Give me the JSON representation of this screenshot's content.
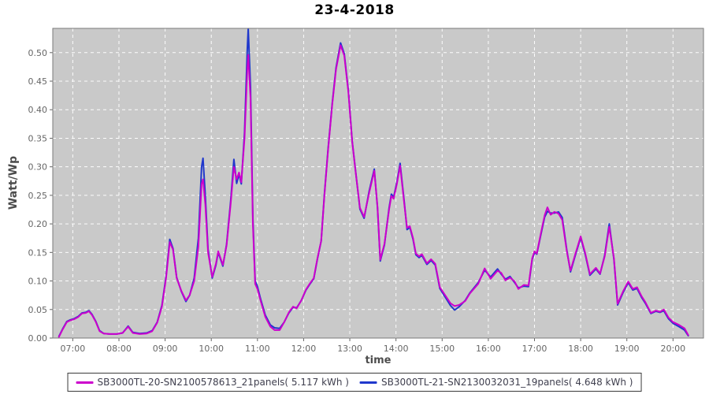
{
  "title": "23-4-2018",
  "colors": {
    "plot_background": "#c9c9c9",
    "plot_border": "#7a7a7a",
    "gridline": "#ffffff",
    "tick_label": "#666666",
    "axis_label": "#4d4d4d",
    "series_magenta": "#cc00cc",
    "series_blue": "#2038cc",
    "legend_border": "#3a3a3a",
    "legend_text": "#3f3f4e"
  },
  "chart_data": {
    "type": "line",
    "title": "23-4-2018",
    "xlabel": "time",
    "ylabel": "Watt/Wp",
    "xlim": [
      6.567,
      20.66
    ],
    "ylim": [
      0,
      0.5425
    ],
    "grid": "white dashed, hourly vertical + 0.05 horizontal",
    "legend_position": "bottom",
    "x_ticks": [
      {
        "value": 7,
        "label": "07:00"
      },
      {
        "value": 8,
        "label": "08:00"
      },
      {
        "value": 9,
        "label": "09:00"
      },
      {
        "value": 10,
        "label": "10:00"
      },
      {
        "value": 11,
        "label": "11:00"
      },
      {
        "value": 12,
        "label": "12:00"
      },
      {
        "value": 13,
        "label": "13:00"
      },
      {
        "value": 14,
        "label": "14:00"
      },
      {
        "value": 15,
        "label": "15:00"
      },
      {
        "value": 16,
        "label": "16:00"
      },
      {
        "value": 17,
        "label": "17:00"
      },
      {
        "value": 18,
        "label": "18:00"
      },
      {
        "value": 19,
        "label": "19:00"
      },
      {
        "value": 20,
        "label": "20:00"
      }
    ],
    "y_ticks": [
      {
        "value": 0.0,
        "label": "0.00"
      },
      {
        "value": 0.05,
        "label": "0.05"
      },
      {
        "value": 0.1,
        "label": "0.10"
      },
      {
        "value": 0.15,
        "label": "0.15"
      },
      {
        "value": 0.2,
        "label": "0.20"
      },
      {
        "value": 0.25,
        "label": "0.25"
      },
      {
        "value": 0.3,
        "label": "0.30"
      },
      {
        "value": 0.35,
        "label": "0.35"
      },
      {
        "value": 0.4,
        "label": "0.40"
      },
      {
        "value": 0.45,
        "label": "0.45"
      },
      {
        "value": 0.5,
        "label": "0.50"
      }
    ],
    "x": [
      6.7,
      6.78,
      6.87,
      6.95,
      7.03,
      7.12,
      7.2,
      7.28,
      7.35,
      7.42,
      7.5,
      7.58,
      7.67,
      7.8,
      7.95,
      8.08,
      8.2,
      8.3,
      8.45,
      8.6,
      8.72,
      8.83,
      8.93,
      9.02,
      9.1,
      9.17,
      9.25,
      9.35,
      9.45,
      9.53,
      9.63,
      9.72,
      9.79,
      9.82,
      9.87,
      9.93,
      10.02,
      10.1,
      10.15,
      10.25,
      10.33,
      10.42,
      10.49,
      10.55,
      10.6,
      10.65,
      10.72,
      10.78,
      10.8,
      10.85,
      10.9,
      10.95,
      11.0,
      11.07,
      11.17,
      11.28,
      11.37,
      11.48,
      11.58,
      11.68,
      11.77,
      11.85,
      11.95,
      12.05,
      12.13,
      12.22,
      12.3,
      12.38,
      12.45,
      12.53,
      12.62,
      12.7,
      12.8,
      12.88,
      12.97,
      13.05,
      13.12,
      13.22,
      13.31,
      13.42,
      13.53,
      13.6,
      13.66,
      13.75,
      13.85,
      13.9,
      13.95,
      14.02,
      14.09,
      14.18,
      14.24,
      14.3,
      14.37,
      14.43,
      14.5,
      14.56,
      14.67,
      14.76,
      14.85,
      14.95,
      15.08,
      15.18,
      15.27,
      15.37,
      15.5,
      15.6,
      15.78,
      15.92,
      16.05,
      16.2,
      16.28,
      16.37,
      16.47,
      16.57,
      16.65,
      16.77,
      16.87,
      16.95,
      17.0,
      17.05,
      17.13,
      17.22,
      17.28,
      17.35,
      17.43,
      17.52,
      17.6,
      17.7,
      17.78,
      17.88,
      18.0,
      18.1,
      18.2,
      18.33,
      18.42,
      18.52,
      18.62,
      18.72,
      18.8,
      18.92,
      19.03,
      19.13,
      19.22,
      19.32,
      19.4,
      19.52,
      19.63,
      19.72,
      19.8,
      19.9,
      20.0,
      20.13,
      20.25,
      20.33
    ],
    "series": [
      {
        "name": "SB3000TL-20-SN2100578613_21panels( 5.117 kWh )",
        "color": "#cc00cc",
        "energy_kwh": "5.117",
        "values": [
          0.002,
          0.015,
          0.028,
          0.031,
          0.033,
          0.037,
          0.043,
          0.044,
          0.047,
          0.04,
          0.028,
          0.012,
          0.008,
          0.007,
          0.007,
          0.009,
          0.02,
          0.009,
          0.007,
          0.008,
          0.012,
          0.027,
          0.055,
          0.105,
          0.168,
          0.155,
          0.105,
          0.083,
          0.066,
          0.075,
          0.1,
          0.16,
          0.27,
          0.278,
          0.235,
          0.15,
          0.107,
          0.13,
          0.152,
          0.128,
          0.162,
          0.235,
          0.3,
          0.278,
          0.29,
          0.273,
          0.35,
          0.47,
          0.496,
          0.42,
          0.2,
          0.095,
          0.086,
          0.065,
          0.037,
          0.02,
          0.014,
          0.014,
          0.028,
          0.045,
          0.055,
          0.052,
          0.066,
          0.085,
          0.095,
          0.105,
          0.14,
          0.17,
          0.25,
          0.33,
          0.41,
          0.47,
          0.513,
          0.495,
          0.43,
          0.345,
          0.295,
          0.228,
          0.212,
          0.255,
          0.293,
          0.23,
          0.137,
          0.165,
          0.225,
          0.249,
          0.244,
          0.27,
          0.302,
          0.235,
          0.193,
          0.196,
          0.175,
          0.148,
          0.143,
          0.147,
          0.131,
          0.138,
          0.13,
          0.089,
          0.073,
          0.061,
          0.056,
          0.058,
          0.065,
          0.078,
          0.095,
          0.122,
          0.104,
          0.118,
          0.114,
          0.101,
          0.106,
          0.099,
          0.086,
          0.093,
          0.092,
          0.14,
          0.152,
          0.148,
          0.18,
          0.215,
          0.229,
          0.216,
          0.221,
          0.218,
          0.207,
          0.152,
          0.118,
          0.146,
          0.178,
          0.148,
          0.112,
          0.123,
          0.113,
          0.143,
          0.195,
          0.14,
          0.06,
          0.082,
          0.099,
          0.086,
          0.089,
          0.073,
          0.063,
          0.044,
          0.048,
          0.046,
          0.05,
          0.036,
          0.028,
          0.023,
          0.017,
          0.005
        ]
      },
      {
        "name": "SB3000TL-21-SN2130032031_19panels( 4.648 kWh )",
        "color": "#2038cc",
        "energy_kwh": "4.648",
        "values": [
          0.003,
          0.016,
          0.029,
          0.032,
          0.034,
          0.038,
          0.044,
          0.045,
          0.048,
          0.041,
          0.029,
          0.013,
          0.008,
          0.007,
          0.007,
          0.009,
          0.021,
          0.01,
          0.008,
          0.009,
          0.013,
          0.028,
          0.057,
          0.108,
          0.173,
          0.157,
          0.106,
          0.082,
          0.064,
          0.075,
          0.105,
          0.175,
          0.3,
          0.315,
          0.25,
          0.155,
          0.105,
          0.128,
          0.15,
          0.126,
          0.164,
          0.24,
          0.313,
          0.271,
          0.287,
          0.27,
          0.36,
          0.505,
          0.542,
          0.44,
          0.21,
          0.1,
          0.09,
          0.068,
          0.04,
          0.023,
          0.018,
          0.017,
          0.028,
          0.044,
          0.054,
          0.053,
          0.066,
          0.084,
          0.094,
          0.104,
          0.139,
          0.17,
          0.252,
          0.332,
          0.412,
          0.473,
          0.517,
          0.498,
          0.432,
          0.346,
          0.296,
          0.226,
          0.21,
          0.258,
          0.296,
          0.228,
          0.135,
          0.163,
          0.228,
          0.252,
          0.247,
          0.273,
          0.306,
          0.238,
          0.19,
          0.194,
          0.173,
          0.146,
          0.141,
          0.145,
          0.129,
          0.136,
          0.128,
          0.087,
          0.07,
          0.057,
          0.049,
          0.055,
          0.066,
          0.079,
          0.097,
          0.119,
          0.107,
          0.121,
          0.112,
          0.103,
          0.108,
          0.097,
          0.088,
          0.091,
          0.09,
          0.138,
          0.15,
          0.147,
          0.178,
          0.212,
          0.222,
          0.219,
          0.219,
          0.221,
          0.211,
          0.154,
          0.116,
          0.144,
          0.176,
          0.146,
          0.11,
          0.121,
          0.112,
          0.145,
          0.2,
          0.138,
          0.058,
          0.08,
          0.097,
          0.084,
          0.087,
          0.071,
          0.061,
          0.043,
          0.047,
          0.045,
          0.048,
          0.034,
          0.026,
          0.02,
          0.014,
          0.004
        ]
      }
    ]
  },
  "legend": {
    "items": [
      {
        "label": "SB3000TL-20-SN2100578613_21panels( 5.117 kWh )",
        "color": "#cc00cc"
      },
      {
        "label": "SB3000TL-21-SN2130032031_19panels( 4.648 kWh )",
        "color": "#2038cc"
      }
    ]
  }
}
